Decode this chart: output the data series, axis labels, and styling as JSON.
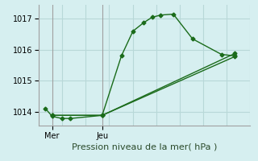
{
  "xlabel": "Pression niveau de la mer( hPa )",
  "bg_color": "#d6eff0",
  "grid_color": "#b8d8d8",
  "line_color": "#1a6b1a",
  "spine_color": "#a0a0a0",
  "yticks": [
    1014,
    1015,
    1016,
    1017
  ],
  "ylim": [
    1013.55,
    1017.45
  ],
  "xlim": [
    0,
    11
  ],
  "xtick_positions": [
    0.7,
    3.3
  ],
  "xtick_labels": [
    "Mer",
    "Jeu"
  ],
  "vline_positions": [
    0.7,
    3.3
  ],
  "num_vgrid": 9,
  "series1_x": [
    0.35,
    0.7,
    1.2,
    1.65,
    3.3,
    4.3,
    4.9,
    5.45,
    5.9,
    6.35,
    7.0,
    8.0,
    9.5,
    10.2
  ],
  "series1_y": [
    1014.1,
    1013.85,
    1013.78,
    1013.78,
    1013.88,
    1015.8,
    1016.6,
    1016.87,
    1017.05,
    1017.12,
    1017.15,
    1016.35,
    1015.85,
    1015.8
  ],
  "series2_x": [
    0.7,
    3.3,
    10.2
  ],
  "series2_y": [
    1013.88,
    1013.88,
    1015.88
  ],
  "series3_x": [
    0.7,
    3.3,
    10.2
  ],
  "series3_y": [
    1013.88,
    1013.88,
    1015.78
  ],
  "marker": "D",
  "markersize": 2.5,
  "linewidth": 1.0,
  "tick_labelsize": 7,
  "xlabel_fontsize": 8
}
